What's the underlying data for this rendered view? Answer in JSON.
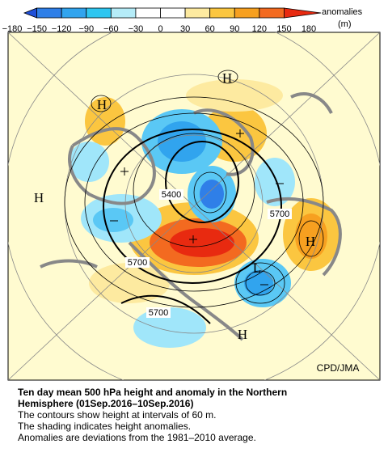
{
  "colorbar": {
    "ticks": [
      "−180",
      "−150",
      "−120",
      "−90",
      "−60",
      "−30",
      "0",
      "30",
      "60",
      "90",
      "120",
      "150",
      "180"
    ],
    "label": "anomalies",
    "unit": "(m)"
  },
  "map": {
    "pressure_centers": [
      "H",
      "H",
      "H",
      "H",
      "H",
      "L"
    ],
    "contour_labels": [
      "5400",
      "5700",
      "5700",
      "5700"
    ],
    "credit": "CPD/JMA"
  },
  "caption": {
    "title_lines": [
      "Ten day mean 500 hPa height and anomaly in the Northern",
      "Hemisphere (01Sep.2016–10Sep.2016)"
    ],
    "lines": [
      "The contours show height at intervals of 60 m.",
      "The shading indicates height anomalies.",
      "Anomalies are deviations from the 1981–2010 average."
    ]
  }
}
